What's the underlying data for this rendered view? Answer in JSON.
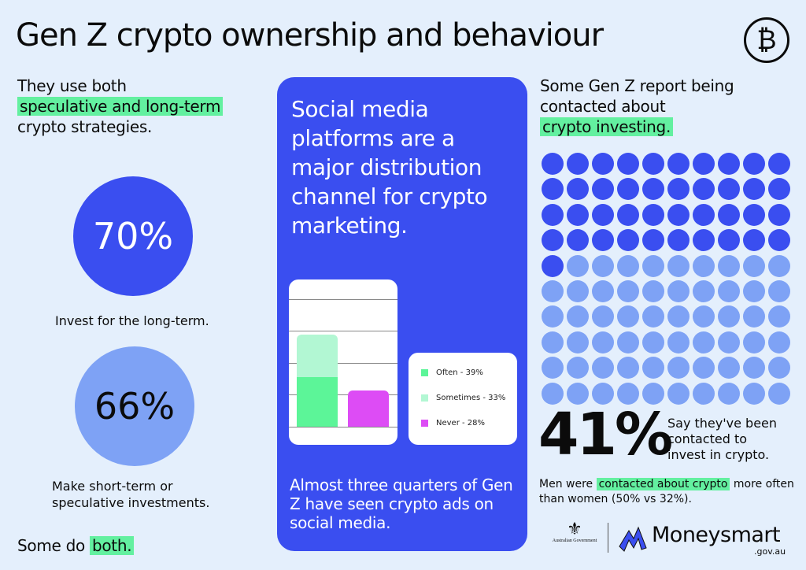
{
  "title": "Gen Z crypto ownership and behaviour",
  "title_icon": "bitcoin-icon",
  "colors": {
    "background": "#e4effc",
    "blue": "#3a4ef0",
    "light_blue": "#7ea2f5",
    "green": "#63f0a0",
    "light_green": "#b2f7d3",
    "magenta": "#dd4cf5"
  },
  "left": {
    "heading_pre": "They use both",
    "heading_hl": "speculative and long-term",
    "heading_post": "crypto strategies.",
    "stat1": {
      "value": "70%",
      "label": "Invest for the long-term."
    },
    "stat2": {
      "value": "66%",
      "label_line1": "Make short-term or",
      "label_line2": "speculative investments."
    },
    "footer_pre": "Some do ",
    "footer_hl": "both."
  },
  "center": {
    "title": "Social media platforms are a major distribution channel for crypto marketing.",
    "footer": "Almost three quarters of Gen Z have seen crypto ads on social media."
  },
  "chart_data": {
    "type": "bar",
    "stacked": true,
    "series": [
      {
        "name": "Often - 39%",
        "values": [
          39,
          0
        ],
        "color": "#5cf598"
      },
      {
        "name": "Sometimes - 33%",
        "values": [
          33,
          0
        ],
        "color": "#b2f7d3"
      },
      {
        "name": "Never - 28%",
        "values": [
          0,
          28
        ],
        "color": "#dd4cf5"
      }
    ],
    "ylim": [
      0,
      100
    ],
    "grid": true,
    "legend_placement": "right"
  },
  "right": {
    "heading_l1": "Some Gen Z report being",
    "heading_l2": "contacted about",
    "heading_hl": "crypto investing.",
    "dots_total": 100,
    "dots_filled": 41,
    "stat": "41%",
    "stat_l1": "Say they've been",
    "stat_l2": "contacted to",
    "stat_l3": "invest in crypto.",
    "note_pre": "Men were ",
    "note_hl": "contacted about crypto",
    "note_post": " more often than women (50% vs 32%)."
  },
  "logos": {
    "gov": "Australian Government",
    "brand": "Moneysmart",
    "domain": ".gov.au"
  }
}
